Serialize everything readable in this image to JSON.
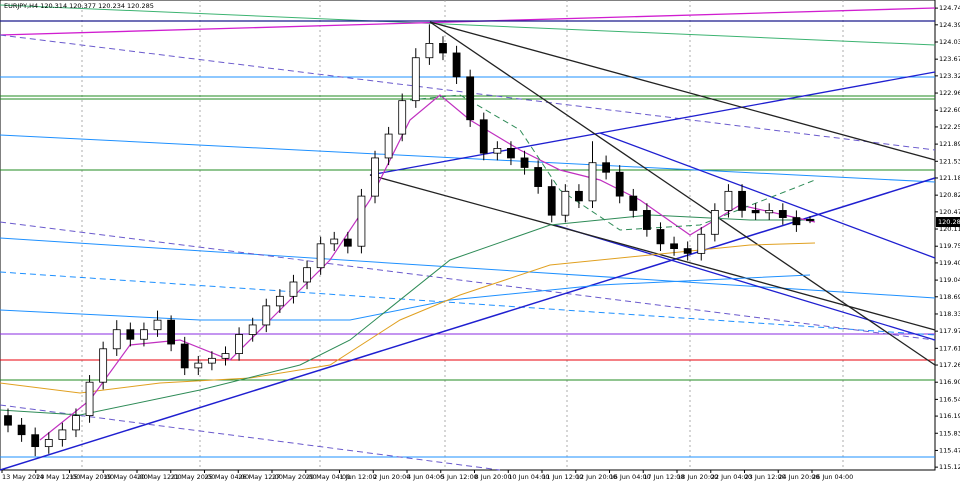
{
  "chart_data": {
    "type": "candlestick",
    "title": "EURJPY,H4  120.314 120.377 120.234 120.285",
    "categories": [
      "13 May 2020",
      "14 May 12:00",
      "15 May 20:00",
      "19 May 04:00",
      "20 May 12:00",
      "21 May 20:00",
      "25 May 04:00",
      "26 May 12:00",
      "27 May 20:00",
      "29 May 04:00",
      "1 Jun 12:00",
      "2 Jun 20:00",
      "4 Jun 04:00",
      "5 Jun 12:00",
      "8 Jun 20:00",
      "10 Jun 04:00",
      "11 Jun 12:00",
      "12 Jun 20:00",
      "16 Jun 04:00",
      "17 Jun 12:00",
      "18 Jun 20:00",
      "22 Jun 04:00",
      "23 Jun 12:00",
      "24 Jun 20:00",
      "26 Jun 04:00"
    ],
    "candles": {
      "open": [
        116.2,
        116.0,
        115.8,
        115.55,
        115.7,
        115.9,
        116.2,
        116.9,
        117.6,
        118.0,
        117.8,
        118.0,
        118.2,
        117.7,
        117.2,
        117.3,
        117.4,
        117.5,
        117.9,
        118.1,
        118.5,
        118.7,
        119.0,
        119.3,
        119.8,
        119.9,
        119.75,
        120.8,
        121.6,
        122.1,
        122.8,
        123.7,
        124.0,
        123.8,
        123.3,
        122.4,
        121.7,
        121.8,
        121.6,
        121.4,
        121.0,
        120.4,
        120.9,
        120.7,
        121.5,
        121.3,
        120.8,
        120.5,
        120.1,
        119.8,
        119.7,
        119.6,
        120.0,
        120.5,
        120.9,
        120.5,
        120.45,
        120.5,
        120.35,
        120.314
      ],
      "high": [
        116.35,
        116.15,
        115.95,
        115.85,
        116.05,
        116.35,
        117.05,
        117.75,
        118.2,
        118.15,
        118.15,
        118.4,
        118.3,
        117.85,
        117.45,
        117.55,
        117.65,
        118.05,
        118.25,
        118.65,
        118.85,
        119.15,
        119.45,
        119.95,
        120.05,
        120.05,
        120.95,
        121.75,
        122.25,
        122.95,
        123.9,
        124.4,
        124.15,
        123.95,
        123.45,
        122.55,
        121.95,
        121.95,
        121.75,
        121.55,
        121.15,
        121.05,
        121.05,
        121.95,
        121.65,
        121.45,
        120.95,
        120.65,
        120.25,
        119.95,
        119.85,
        120.15,
        120.65,
        121.05,
        121.05,
        120.65,
        120.65,
        120.65,
        120.5,
        120.377
      ],
      "low": [
        115.85,
        115.65,
        115.35,
        115.4,
        115.55,
        115.75,
        116.05,
        116.75,
        117.45,
        117.65,
        117.65,
        117.85,
        117.55,
        117.05,
        117.05,
        117.15,
        117.25,
        117.35,
        117.75,
        117.95,
        118.35,
        118.55,
        118.85,
        119.15,
        119.65,
        119.6,
        119.6,
        120.65,
        121.45,
        121.95,
        122.65,
        123.55,
        123.65,
        123.15,
        122.25,
        121.55,
        121.55,
        121.45,
        121.25,
        120.85,
        120.25,
        120.25,
        120.55,
        120.55,
        121.15,
        120.65,
        120.35,
        119.95,
        119.65,
        119.55,
        119.45,
        119.45,
        119.85,
        120.35,
        120.35,
        120.3,
        120.3,
        120.2,
        120.05,
        120.234
      ],
      "close": [
        116.0,
        115.8,
        115.55,
        115.7,
        115.9,
        116.2,
        116.9,
        117.6,
        118.0,
        117.8,
        118.0,
        118.2,
        117.7,
        117.2,
        117.3,
        117.4,
        117.5,
        117.9,
        118.1,
        118.5,
        118.7,
        119.0,
        119.3,
        119.8,
        119.9,
        119.75,
        120.8,
        121.6,
        122.1,
        122.8,
        123.7,
        124.0,
        123.8,
        123.3,
        122.4,
        121.7,
        121.8,
        121.6,
        121.4,
        121.0,
        120.4,
        120.9,
        120.7,
        121.5,
        121.3,
        120.8,
        120.5,
        120.1,
        119.8,
        119.7,
        119.6,
        120.0,
        120.5,
        120.9,
        120.5,
        120.45,
        120.5,
        120.35,
        120.2,
        120.285
      ]
    },
    "ylim": [
      115.06,
      124.91
    ],
    "yticks": [
      {
        "value": 124.74,
        "label": "124.740"
      },
      {
        "value": 124.39,
        "label": "124.390"
      },
      {
        "value": 124.03,
        "label": "124.030"
      },
      {
        "value": 123.67,
        "label": "123.670"
      },
      {
        "value": 123.32,
        "label": "123.320"
      },
      {
        "value": 122.96,
        "label": "122.960"
      },
      {
        "value": 122.6,
        "label": "122.600"
      },
      {
        "value": 122.25,
        "label": "122.250"
      },
      {
        "value": 121.89,
        "label": "121.890"
      },
      {
        "value": 121.53,
        "label": "121.530"
      },
      {
        "value": 121.18,
        "label": "121.180"
      },
      {
        "value": 120.82,
        "label": "120.820"
      },
      {
        "value": 120.47,
        "label": "120.470"
      },
      {
        "value": 120.11,
        "label": "120.110"
      },
      {
        "value": 119.75,
        "label": "119.750"
      },
      {
        "value": 119.4,
        "label": "119.400"
      },
      {
        "value": 119.04,
        "label": "119.040"
      },
      {
        "value": 118.69,
        "label": "118.690"
      },
      {
        "value": 118.33,
        "label": "118.330"
      },
      {
        "value": 117.97,
        "label": "117.970"
      },
      {
        "value": 117.61,
        "label": "117.610"
      },
      {
        "value": 117.26,
        "label": "117.260"
      },
      {
        "value": 116.9,
        "label": "116.900"
      },
      {
        "value": 116.54,
        "label": "116.540"
      },
      {
        "value": 116.19,
        "label": "116.190"
      },
      {
        "value": 115.83,
        "label": "115.830"
      },
      {
        "value": 115.47,
        "label": "115.470"
      },
      {
        "value": 115.12,
        "label": "115.120"
      }
    ],
    "bull_color": "#ffffff",
    "bear_color": "#000000"
  }
}
